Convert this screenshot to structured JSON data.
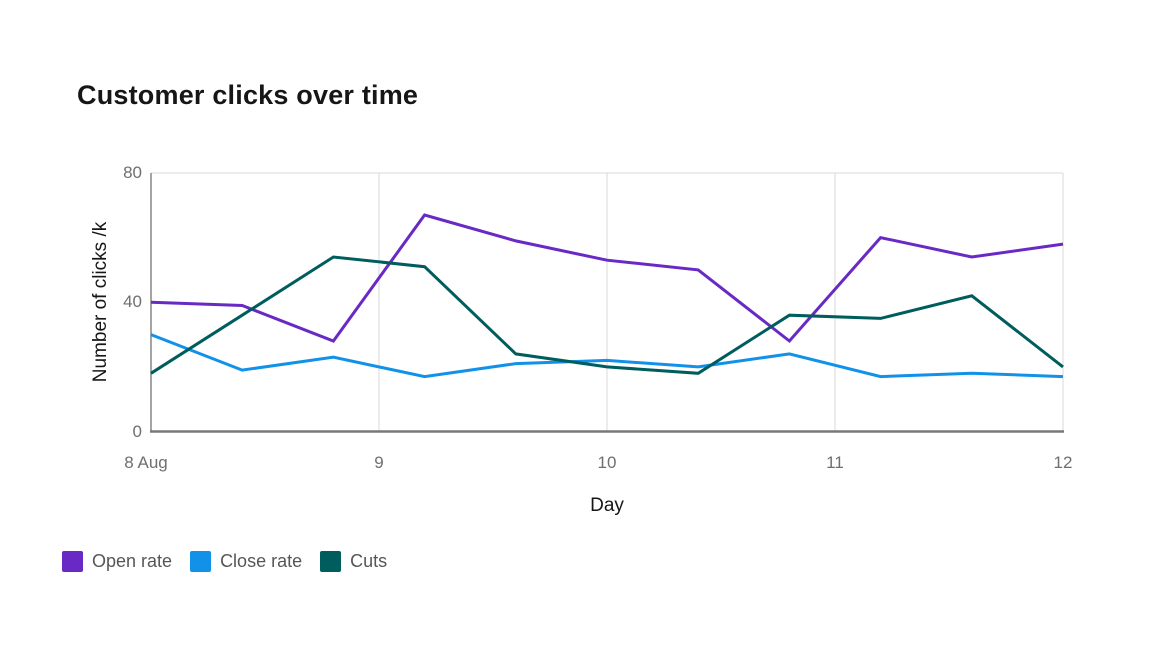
{
  "title": "Customer clicks over time",
  "colors": {
    "title_text": "#161616",
    "axis_title_text": "#161616",
    "tick_label_text": "#6f6f6f",
    "legend_text": "#565656",
    "gridline": "#e0e0e0",
    "y_axis_line": "#8d8d8d",
    "x_axis_line": "#787878",
    "background": "#ffffff"
  },
  "chart_data": {
    "type": "line",
    "title": "Customer clicks over time",
    "xlabel": "Day",
    "ylabel": "Number of clicks /k",
    "xlim": [
      8,
      12
    ],
    "ylim": [
      0,
      80
    ],
    "x": [
      8.0,
      8.4,
      8.8,
      9.2,
      9.6,
      10.0,
      10.4,
      10.8,
      11.2,
      11.6,
      12.0
    ],
    "xticks": [
      {
        "value": 8,
        "label": "8 Aug"
      },
      {
        "value": 9,
        "label": "9"
      },
      {
        "value": 10,
        "label": "10"
      },
      {
        "value": 11,
        "label": "11"
      },
      {
        "value": 12,
        "label": "12"
      }
    ],
    "yticks": [
      {
        "value": 0,
        "label": "0"
      },
      {
        "value": 40,
        "label": "40"
      },
      {
        "value": 80,
        "label": "80"
      }
    ],
    "grid": {
      "vertical_at": [
        9,
        10,
        11,
        12
      ],
      "horizontal_at": [
        80
      ]
    },
    "legend_position": "bottom-left",
    "series": [
      {
        "name": "Open rate",
        "color": "#6929c4",
        "values": [
          40,
          39,
          28,
          67,
          59,
          53,
          50,
          28,
          60,
          54,
          58
        ]
      },
      {
        "name": "Close rate",
        "color": "#1192e8",
        "values": [
          30,
          19,
          23,
          17,
          21,
          22,
          20,
          24,
          17,
          18,
          17
        ]
      },
      {
        "name": "Cuts",
        "color": "#005d5d",
        "values": [
          18,
          36,
          54,
          51,
          24,
          20,
          18,
          36,
          35,
          42,
          20
        ]
      }
    ]
  }
}
